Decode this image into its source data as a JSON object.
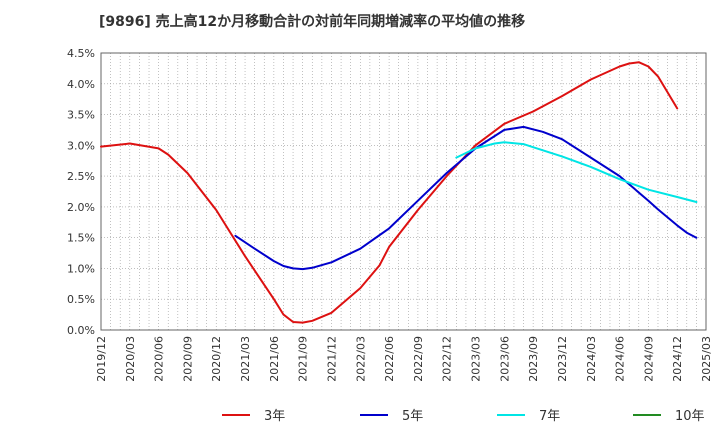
{
  "chart_data": {
    "type": "line",
    "title": "[9896]  売上高12か月移動合計の対前年同期増減率の平均値の推移",
    "xlabel": "",
    "ylabel": "",
    "ylim": [
      0,
      4.5
    ],
    "yticks": [
      "0.0%",
      "0.5%",
      "1.0%",
      "1.5%",
      "2.0%",
      "2.5%",
      "3.0%",
      "3.5%",
      "4.0%",
      "4.5%"
    ],
    "xticks": [
      "2019/12",
      "2020/03",
      "2020/06",
      "2020/09",
      "2020/12",
      "2021/03",
      "2021/06",
      "2021/09",
      "2021/12",
      "2022/03",
      "2022/06",
      "2022/09",
      "2022/12",
      "2023/03",
      "2023/06",
      "2023/09",
      "2023/12",
      "2024/03",
      "2024/06",
      "2024/09",
      "2024/12",
      "2025/03"
    ],
    "grid": true,
    "legend_position": "bottom",
    "series": [
      {
        "name": "3年",
        "color": "#dd1111",
        "points": [
          [
            "2019/12",
            2.98
          ],
          [
            "2020/03",
            3.03
          ],
          [
            "2020/06",
            2.95
          ],
          [
            "2020/07",
            2.85
          ],
          [
            "2020/09",
            2.55
          ],
          [
            "2020/12",
            1.95
          ],
          [
            "2021/03",
            1.2
          ],
          [
            "2021/06",
            0.5
          ],
          [
            "2021/07",
            0.25
          ],
          [
            "2021/08",
            0.13
          ],
          [
            "2021/09",
            0.12
          ],
          [
            "2021/10",
            0.15
          ],
          [
            "2021/12",
            0.28
          ],
          [
            "2022/03",
            0.68
          ],
          [
            "2022/05",
            1.05
          ],
          [
            "2022/06",
            1.35
          ],
          [
            "2022/09",
            1.95
          ],
          [
            "2022/12",
            2.5
          ],
          [
            "2023/03",
            3.0
          ],
          [
            "2023/06",
            3.35
          ],
          [
            "2023/09",
            3.55
          ],
          [
            "2023/12",
            3.8
          ],
          [
            "2024/03",
            4.07
          ],
          [
            "2024/06",
            4.28
          ],
          [
            "2024/07",
            4.33
          ],
          [
            "2024/08",
            4.35
          ],
          [
            "2024/09",
            4.28
          ],
          [
            "2024/10",
            4.12
          ],
          [
            "2024/12",
            3.6
          ]
        ]
      },
      {
        "name": "5年",
        "color": "#0000cc",
        "points": [
          [
            "2021/02",
            1.53
          ],
          [
            "2021/04",
            1.32
          ],
          [
            "2021/06",
            1.12
          ],
          [
            "2021/07",
            1.04
          ],
          [
            "2021/08",
            1.0
          ],
          [
            "2021/09",
            0.99
          ],
          [
            "2021/10",
            1.01
          ],
          [
            "2021/12",
            1.1
          ],
          [
            "2022/03",
            1.32
          ],
          [
            "2022/06",
            1.65
          ],
          [
            "2022/09",
            2.1
          ],
          [
            "2022/12",
            2.55
          ],
          [
            "2023/03",
            2.95
          ],
          [
            "2023/06",
            3.25
          ],
          [
            "2023/08",
            3.3
          ],
          [
            "2023/10",
            3.22
          ],
          [
            "2023/12",
            3.1
          ],
          [
            "2024/03",
            2.8
          ],
          [
            "2024/06",
            2.5
          ],
          [
            "2024/09",
            2.1
          ],
          [
            "2024/10",
            1.96
          ],
          [
            "2024/12",
            1.7
          ],
          [
            "2025/01",
            1.58
          ],
          [
            "2025/02",
            1.5
          ]
        ]
      },
      {
        "name": "7年",
        "color": "#00e5e5",
        "points": [
          [
            "2023/01",
            2.8
          ],
          [
            "2023/03",
            2.95
          ],
          [
            "2023/05",
            3.03
          ],
          [
            "2023/06",
            3.05
          ],
          [
            "2023/08",
            3.02
          ],
          [
            "2023/09",
            2.97
          ],
          [
            "2023/12",
            2.82
          ],
          [
            "2024/03",
            2.65
          ],
          [
            "2024/06",
            2.45
          ],
          [
            "2024/09",
            2.28
          ],
          [
            "2024/12",
            2.16
          ],
          [
            "2025/02",
            2.08
          ]
        ]
      },
      {
        "name": "10年",
        "color": "#228b22",
        "points": []
      }
    ]
  }
}
